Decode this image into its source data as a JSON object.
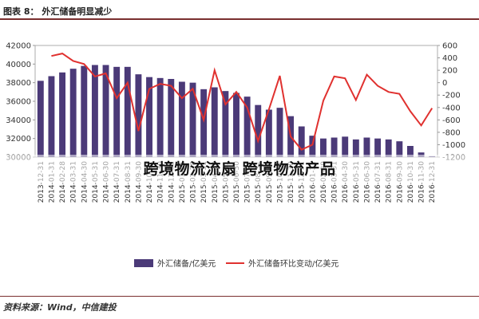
{
  "caption": "图表 8：  外汇储备明显减少",
  "overlay_text": "跨境物流流扇 跨境物流产品",
  "source": "资料来源：Wind，中信建投",
  "colors": {
    "bar": "#4b3a78",
    "line": "#e0312f",
    "axis": "#999999",
    "grid": "#e6e6e6"
  },
  "chart_data": {
    "type": "bar",
    "categories": [
      "2013-12-31",
      "2014-01-31",
      "2014-02-28",
      "2014-03-31",
      "2014-04-30",
      "2014-05-31",
      "2014-06-30",
      "2014-07-31",
      "2014-08-31",
      "2014-09-30",
      "2014-10-31",
      "2014-11-30",
      "2014-12-31",
      "2015-01-31",
      "2015-02-28",
      "2015-03-31",
      "2015-04-30",
      "2015-05-31",
      "2015-06-30",
      "2015-07-31",
      "2015-08-31",
      "2015-09-30",
      "2015-10-31",
      "2015-11-30",
      "2015-12-31",
      "2016-01-31",
      "2016-02-29",
      "2016-03-31",
      "2016-04-30",
      "2016-05-31",
      "2016-06-30",
      "2016-07-31",
      "2016-08-31",
      "2016-09-30",
      "2016-10-31",
      "2016-11-30",
      "2016-12-31"
    ],
    "series": [
      {
        "name": "外汇储备/亿美元",
        "type": "bar",
        "axis": "left",
        "values": [
          38200,
          38700,
          39100,
          39500,
          39800,
          39900,
          39900,
          39700,
          39700,
          38900,
          38600,
          38500,
          38400,
          38100,
          38000,
          37300,
          37500,
          37100,
          36900,
          36500,
          35600,
          35100,
          35300,
          34400,
          33300,
          32300,
          32000,
          32100,
          32200,
          31900,
          32100,
          32000,
          31900,
          31700,
          31200,
          30500,
          30100
        ]
      },
      {
        "name": "外汇储备环比变动/亿美元",
        "type": "line",
        "axis": "right",
        "values": [
          null,
          430,
          470,
          350,
          300,
          100,
          150,
          -250,
          0,
          -780,
          -100,
          -20,
          -50,
          -250,
          -100,
          -600,
          200,
          -350,
          -150,
          -400,
          -940,
          -430,
          110,
          -870,
          -1080,
          -1000,
          -290,
          100,
          70,
          -280,
          130,
          -50,
          -150,
          -180,
          -460,
          -690,
          -410
        ]
      }
    ],
    "ylim_left": [
      30000,
      42000
    ],
    "yticks_left": [
      30000,
      32000,
      34000,
      36000,
      38000,
      40000,
      42000
    ],
    "ylim_right": [
      -1200,
      600
    ],
    "yticks_right": [
      -1200,
      -1000,
      -800,
      -600,
      -400,
      -200,
      0,
      200,
      400,
      600
    ],
    "legend": [
      "外汇储备/亿美元",
      "外汇储备环比变动/亿美元"
    ],
    "legend_position": "bottom"
  }
}
